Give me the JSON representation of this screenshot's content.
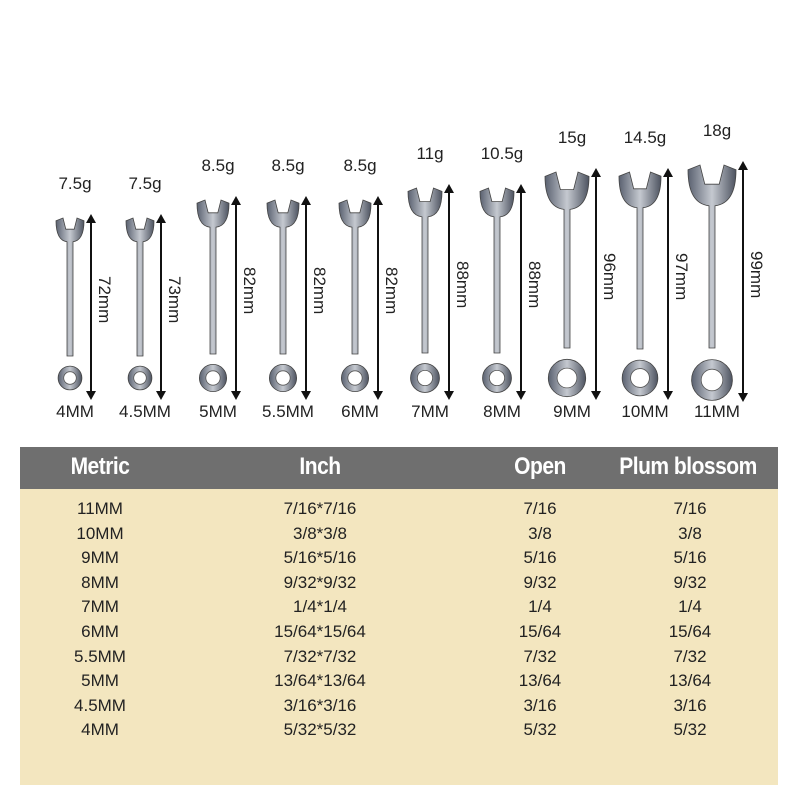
{
  "wrenches": [
    {
      "size": "4MM",
      "weight": "7.5g",
      "length": "72mm"
    },
    {
      "size": "4.5MM",
      "weight": "7.5g",
      "length": "73mm"
    },
    {
      "size": "5MM",
      "weight": "8.5g",
      "length": "82mm"
    },
    {
      "size": "5.5MM",
      "weight": "8.5g",
      "length": "82mm"
    },
    {
      "size": "6MM",
      "weight": "8.5g",
      "length": "82mm"
    },
    {
      "size": "7MM",
      "weight": "11g",
      "length": "88mm"
    },
    {
      "size": "8MM",
      "weight": "10.5g",
      "length": "88mm"
    },
    {
      "size": "9MM",
      "weight": "15g",
      "length": "96mm"
    },
    {
      "size": "10MM",
      "weight": "14.5g",
      "length": "97mm"
    },
    {
      "size": "11MM",
      "weight": "18g",
      "length": "99mm"
    }
  ],
  "table": {
    "headers": [
      "Metric",
      "Inch",
      "Open",
      "Plum blossom"
    ],
    "rows": [
      [
        "11MM",
        "7/16*7/16",
        "7/16",
        "7/16"
      ],
      [
        "10MM",
        "3/8*3/8",
        "3/8",
        "3/8"
      ],
      [
        "9MM",
        "5/16*5/16",
        "5/16",
        "5/16"
      ],
      [
        "8MM",
        "9/32*9/32",
        "9/32",
        "9/32"
      ],
      [
        "7MM",
        "1/4*1/4",
        "1/4",
        "1/4"
      ],
      [
        "6MM",
        "15/64*15/64",
        "15/64",
        "15/64"
      ],
      [
        "5.5MM",
        "7/32*7/32",
        "7/32",
        "7/32"
      ],
      [
        "5MM",
        "13/64*13/64",
        "13/64",
        "13/64"
      ],
      [
        "4.5MM",
        "3/16*3/16",
        "3/16",
        "3/16"
      ],
      [
        "4MM",
        "5/32*5/32",
        "5/32",
        "5/32"
      ]
    ]
  },
  "colors": {
    "header_bg": "#6f6f6f",
    "table_bg": "#f3e6bf",
    "wrench": "#8a8f98"
  }
}
